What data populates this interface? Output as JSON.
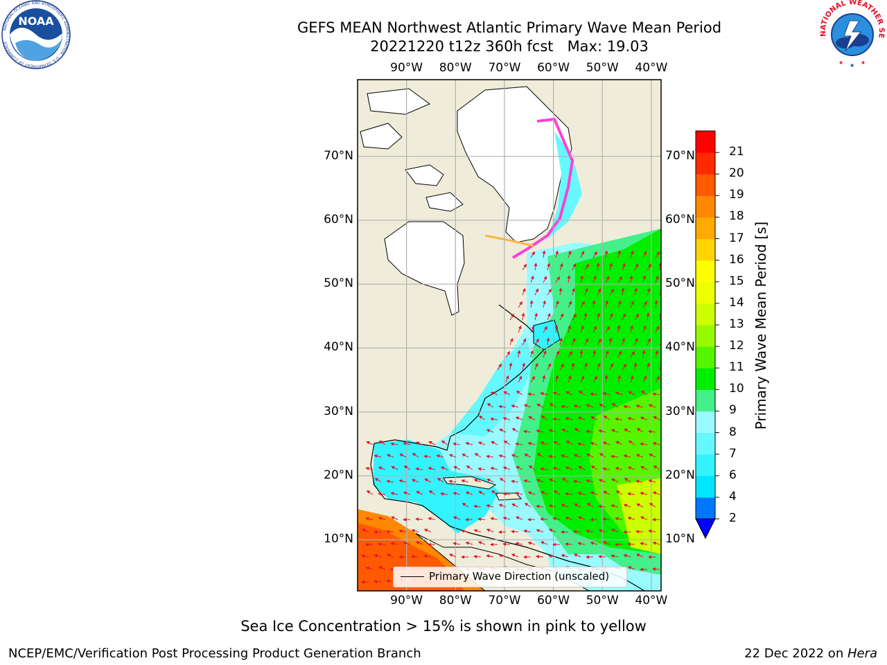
{
  "title": {
    "line1": "GEFS MEAN Northwest Atlantic Primary Wave Mean Period",
    "line2": "20221220 t12z 360h fcst   Max: 19.03"
  },
  "logos": {
    "noaa_text": "NOAA",
    "noaa_ring_text": "NATIONAL OCEANIC AND ATMOSPHERIC ADMINISTRATION · U.S. DEPARTMENT OF COMMERCE",
    "nws_ring_text": "NATIONAL WEATHER SERVICE"
  },
  "map": {
    "extent": {
      "lon": [
        -100,
        -38
      ],
      "lat": [
        2,
        82
      ]
    },
    "lon_ticks": [
      "90°W",
      "80°W",
      "70°W",
      "60°W",
      "50°W",
      "40°W"
    ],
    "lon_values": [
      -90,
      -80,
      -70,
      -60,
      -50,
      -40
    ],
    "lat_ticks": [
      "10°N",
      "20°N",
      "30°N",
      "40°N",
      "50°N",
      "60°N",
      "70°N"
    ],
    "lat_values": [
      10,
      20,
      30,
      40,
      50,
      60,
      70
    ],
    "colors": {
      "land": "#efedda",
      "ice": "#ffffff",
      "arrow": "#e8102a",
      "grid": "#b0b0b0"
    }
  },
  "legend": {
    "label": "Primary Wave Direction (unscaled)"
  },
  "colorbar": {
    "title": "Primary Wave Mean Period [s]",
    "tick_labels": [
      "2",
      "4",
      "6",
      "7",
      "8",
      "9",
      "10",
      "11",
      "12",
      "13",
      "14",
      "15",
      "16",
      "17",
      "18",
      "19",
      "20",
      "21"
    ],
    "tick_values": [
      2,
      4,
      6,
      7,
      8,
      9,
      10,
      11,
      12,
      13,
      14,
      15,
      16,
      17,
      18,
      19,
      20,
      21
    ],
    "colors": [
      "#0077ff",
      "#00e5ff",
      "#33f3ff",
      "#66f8ff",
      "#99fbff",
      "#44f08a",
      "#00ee00",
      "#55f500",
      "#99fa00",
      "#ccff00",
      "#eeff00",
      "#ffff00",
      "#ffd400",
      "#ffaa00",
      "#ff8800",
      "#ff5a00",
      "#ff2a00",
      "#ff0000"
    ],
    "extend_color": "#0000ff"
  },
  "caption": "Sea Ice Concentration > 15% is shown in pink to yellow",
  "footer": {
    "left": "NCEP/EMC/Verification Post Processing Product Generation Branch",
    "right_prefix": "22 Dec 2022 on ",
    "right_host": "Hera"
  }
}
